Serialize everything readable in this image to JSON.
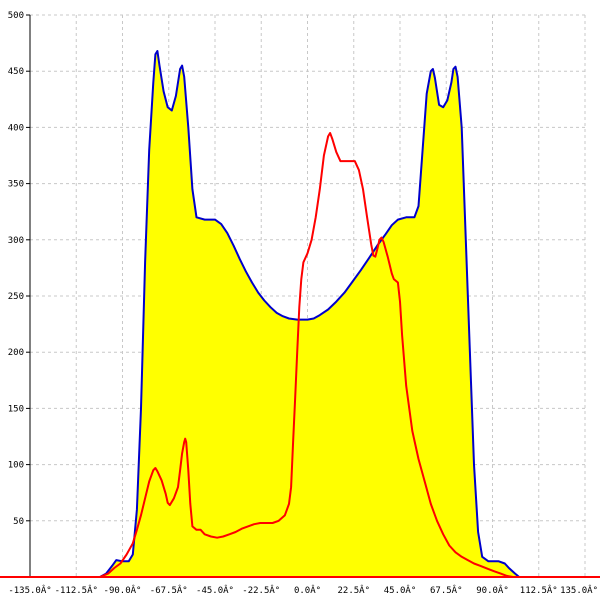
{
  "chart_data": {
    "type": "area",
    "xlim": [
      -135,
      135
    ],
    "ylim": [
      0,
      500
    ],
    "x_ticks": [
      {
        "value": -135,
        "label": "-135.0Â°"
      },
      {
        "value": -112.5,
        "label": "-112.5Â°"
      },
      {
        "value": -90,
        "label": "-90.0Â°"
      },
      {
        "value": -67.5,
        "label": "-67.5Â°"
      },
      {
        "value": -45,
        "label": "-45.0Â°"
      },
      {
        "value": -22.5,
        "label": "-22.5Â°"
      },
      {
        "value": 0,
        "label": "0.0Â°"
      },
      {
        "value": 22.5,
        "label": "22.5Â°"
      },
      {
        "value": 45,
        "label": "45.0Â°"
      },
      {
        "value": 67.5,
        "label": "67.5Â°"
      },
      {
        "value": 90,
        "label": "90.0Â°"
      },
      {
        "value": 112.5,
        "label": "112.5Â°"
      },
      {
        "value": 135,
        "label": "135.0Â°"
      }
    ],
    "y_ticks": [
      {
        "value": 50,
        "label": "50"
      },
      {
        "value": 100,
        "label": "100"
      },
      {
        "value": 150,
        "label": "150"
      },
      {
        "value": 200,
        "label": "200"
      },
      {
        "value": 250,
        "label": "250"
      },
      {
        "value": 300,
        "label": "300"
      },
      {
        "value": 350,
        "label": "350"
      },
      {
        "value": 400,
        "label": "400"
      },
      {
        "value": 450,
        "label": "450"
      },
      {
        "value": 500,
        "label": "500"
      }
    ],
    "grid": true,
    "series": [
      {
        "color": "#0000cc",
        "fill": "#ffff00",
        "points": [
          [
            -101,
            0
          ],
          [
            -98,
            3
          ],
          [
            -95,
            10
          ],
          [
            -93,
            15
          ],
          [
            -90,
            14
          ],
          [
            -87,
            14
          ],
          [
            -85,
            20
          ],
          [
            -83,
            60
          ],
          [
            -81,
            150
          ],
          [
            -79,
            280
          ],
          [
            -77,
            380
          ],
          [
            -75,
            440
          ],
          [
            -74,
            465
          ],
          [
            -73,
            468
          ],
          [
            -72,
            455
          ],
          [
            -70,
            432
          ],
          [
            -68,
            418
          ],
          [
            -66,
            415
          ],
          [
            -64,
            428
          ],
          [
            -62,
            452
          ],
          [
            -61,
            455
          ],
          [
            -60,
            445
          ],
          [
            -58,
            400
          ],
          [
            -56,
            345
          ],
          [
            -54,
            320
          ],
          [
            -50,
            318
          ],
          [
            -45,
            318
          ],
          [
            -42,
            314
          ],
          [
            -39,
            306
          ],
          [
            -36,
            295
          ],
          [
            -33,
            283
          ],
          [
            -30,
            272
          ],
          [
            -27,
            262
          ],
          [
            -24,
            253
          ],
          [
            -21,
            246
          ],
          [
            -18,
            240
          ],
          [
            -15,
            235
          ],
          [
            -12,
            232
          ],
          [
            -9,
            230
          ],
          [
            -5,
            229
          ],
          [
            0,
            229
          ],
          [
            3,
            230
          ],
          [
            6,
            233
          ],
          [
            10,
            238
          ],
          [
            14,
            245
          ],
          [
            18,
            253
          ],
          [
            22,
            263
          ],
          [
            26,
            273
          ],
          [
            30,
            284
          ],
          [
            34,
            295
          ],
          [
            38,
            305
          ],
          [
            41,
            313
          ],
          [
            44,
            318
          ],
          [
            48,
            320
          ],
          [
            52,
            320
          ],
          [
            54,
            330
          ],
          [
            56,
            380
          ],
          [
            58,
            430
          ],
          [
            60,
            450
          ],
          [
            61,
            452
          ],
          [
            62,
            444
          ],
          [
            64,
            420
          ],
          [
            66,
            418
          ],
          [
            68,
            424
          ],
          [
            70,
            440
          ],
          [
            71,
            452
          ],
          [
            72,
            454
          ],
          [
            73,
            445
          ],
          [
            75,
            400
          ],
          [
            77,
            300
          ],
          [
            79,
            200
          ],
          [
            81,
            100
          ],
          [
            83,
            40
          ],
          [
            85,
            18
          ],
          [
            88,
            14
          ],
          [
            90,
            14
          ],
          [
            93,
            14
          ],
          [
            96,
            12
          ],
          [
            98,
            8
          ],
          [
            101,
            3
          ],
          [
            103,
            0
          ]
        ]
      },
      {
        "color": "#ff0000",
        "fill": "none",
        "points": [
          [
            -101,
            0
          ],
          [
            -97,
            3
          ],
          [
            -94,
            8
          ],
          [
            -91,
            12
          ],
          [
            -88,
            20
          ],
          [
            -85,
            30
          ],
          [
            -83,
            42
          ],
          [
            -81,
            55
          ],
          [
            -79,
            70
          ],
          [
            -77,
            85
          ],
          [
            -75,
            95
          ],
          [
            -74,
            97
          ],
          [
            -73,
            94
          ],
          [
            -71,
            86
          ],
          [
            -69,
            74
          ],
          [
            -68,
            66
          ],
          [
            -67,
            64
          ],
          [
            -65,
            70
          ],
          [
            -63,
            80
          ],
          [
            -62,
            95
          ],
          [
            -61,
            110
          ],
          [
            -60,
            120
          ],
          [
            -59.5,
            123
          ],
          [
            -59,
            120
          ],
          [
            -58,
            95
          ],
          [
            -57,
            65
          ],
          [
            -56,
            45
          ],
          [
            -54,
            42
          ],
          [
            -52,
            42
          ],
          [
            -50,
            38
          ],
          [
            -47,
            36
          ],
          [
            -44,
            35
          ],
          [
            -41,
            36
          ],
          [
            -38,
            38
          ],
          [
            -35,
            40
          ],
          [
            -32,
            43
          ],
          [
            -29,
            45
          ],
          [
            -26,
            47
          ],
          [
            -23,
            48
          ],
          [
            -20,
            48
          ],
          [
            -17,
            48
          ],
          [
            -14,
            50
          ],
          [
            -11,
            55
          ],
          [
            -9,
            65
          ],
          [
            -8,
            80
          ],
          [
            -7,
            120
          ],
          [
            -6,
            160
          ],
          [
            -5,
            200
          ],
          [
            -4,
            240
          ],
          [
            -3,
            265
          ],
          [
            -2,
            280
          ],
          [
            0,
            288
          ],
          [
            2,
            300
          ],
          [
            4,
            320
          ],
          [
            6,
            345
          ],
          [
            8,
            375
          ],
          [
            10,
            392
          ],
          [
            11,
            395
          ],
          [
            12,
            390
          ],
          [
            14,
            378
          ],
          [
            16,
            370
          ],
          [
            20,
            370
          ],
          [
            23,
            370
          ],
          [
            25,
            362
          ],
          [
            27,
            345
          ],
          [
            29,
            320
          ],
          [
            31,
            296
          ],
          [
            32,
            286
          ],
          [
            33,
            285
          ],
          [
            34,
            292
          ],
          [
            35,
            300
          ],
          [
            36,
            302
          ],
          [
            37,
            298
          ],
          [
            39,
            285
          ],
          [
            41,
            270
          ],
          [
            42,
            265
          ],
          [
            44,
            262
          ],
          [
            45,
            245
          ],
          [
            46,
            215
          ],
          [
            48,
            170
          ],
          [
            51,
            130
          ],
          [
            54,
            105
          ],
          [
            57,
            85
          ],
          [
            60,
            65
          ],
          [
            63,
            50
          ],
          [
            66,
            38
          ],
          [
            69,
            28
          ],
          [
            72,
            22
          ],
          [
            75,
            18
          ],
          [
            78,
            15
          ],
          [
            81,
            12
          ],
          [
            84,
            10
          ],
          [
            88,
            7
          ],
          [
            91,
            5
          ],
          [
            94,
            3
          ],
          [
            97,
            1
          ],
          [
            100,
            0
          ]
        ]
      }
    ]
  }
}
